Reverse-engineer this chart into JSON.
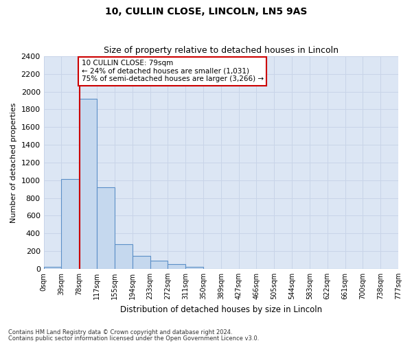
{
  "title1": "10, CULLIN CLOSE, LINCOLN, LN5 9AS",
  "title2": "Size of property relative to detached houses in Lincoln",
  "xlabel": "Distribution of detached houses by size in Lincoln",
  "ylabel": "Number of detached properties",
  "bin_labels": [
    "0sqm",
    "39sqm",
    "78sqm",
    "117sqm",
    "155sqm",
    "194sqm",
    "233sqm",
    "272sqm",
    "311sqm",
    "350sqm",
    "389sqm",
    "427sqm",
    "466sqm",
    "505sqm",
    "544sqm",
    "583sqm",
    "622sqm",
    "661sqm",
    "700sqm",
    "738sqm",
    "777sqm"
  ],
  "bar_values": [
    22,
    1010,
    1920,
    920,
    280,
    145,
    95,
    55,
    20,
    0,
    0,
    0,
    0,
    0,
    0,
    0,
    0,
    0,
    0,
    0
  ],
  "bar_color": "#c5d8ee",
  "bar_edge_color": "#5b8fc7",
  "property_line_x": 79,
  "bin_width": 39,
  "ylim": [
    0,
    2400
  ],
  "yticks": [
    0,
    200,
    400,
    600,
    800,
    1000,
    1200,
    1400,
    1600,
    1800,
    2000,
    2200,
    2400
  ],
  "annotation_text": "10 CULLIN CLOSE: 79sqm\n← 24% of detached houses are smaller (1,031)\n75% of semi-detached houses are larger (3,266) →",
  "annotation_box_color": "#ffffff",
  "annotation_box_edge": "#cc0000",
  "footer1": "Contains HM Land Registry data © Crown copyright and database right 2024.",
  "footer2": "Contains public sector information licensed under the Open Government Licence v3.0.",
  "grid_color": "#c8d4e8",
  "bg_color": "#dce6f4"
}
